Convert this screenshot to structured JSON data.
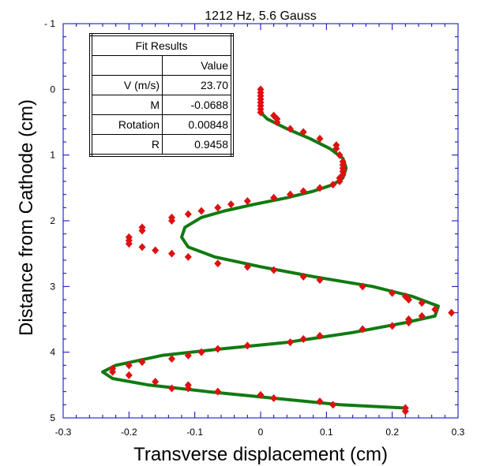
{
  "chart_data": {
    "type": "scatter",
    "title": "1212 Hz, 5.6 Gauss",
    "xlabel": "Transverse displacement (cm)",
    "ylabel": "Distance from Cathode (cm)",
    "xlim": [
      -0.3,
      0.3
    ],
    "ylim": [
      -1,
      5
    ],
    "y_inverted": true,
    "xticks": [
      "-0.3",
      "-0.2",
      "-0.1",
      "0",
      "0.1",
      "0.2",
      "0.3"
    ],
    "yticks": [
      "- 1",
      "0",
      "1",
      "2",
      "3",
      "4",
      "5"
    ],
    "grid": false,
    "colors": {
      "points": "#dd1111",
      "fit": "#117a11",
      "axes": "#0000cc"
    },
    "series": [
      {
        "role": "measured",
        "marker": "diamond",
        "points": [
          [
            0.0,
            0.0
          ],
          [
            0.0,
            0.05
          ],
          [
            0.0,
            0.1
          ],
          [
            0.0,
            0.15
          ],
          [
            0.0,
            0.2
          ],
          [
            0.0,
            0.25
          ],
          [
            0.0,
            0.3
          ],
          [
            0.0,
            0.35
          ],
          [
            0.02,
            0.4
          ],
          [
            0.025,
            0.45
          ],
          [
            0.025,
            0.5
          ],
          [
            0.045,
            0.6
          ],
          [
            0.065,
            0.65
          ],
          [
            0.09,
            0.75
          ],
          [
            0.115,
            0.85
          ],
          [
            0.115,
            0.9
          ],
          [
            0.12,
            1.0
          ],
          [
            0.125,
            1.1
          ],
          [
            0.125,
            1.15
          ],
          [
            0.125,
            1.2
          ],
          [
            0.125,
            1.25
          ],
          [
            0.125,
            1.3
          ],
          [
            0.12,
            1.35
          ],
          [
            0.12,
            1.4
          ],
          [
            0.11,
            1.45
          ],
          [
            0.09,
            1.5
          ],
          [
            0.065,
            1.55
          ],
          [
            0.045,
            1.6
          ],
          [
            0.02,
            1.65
          ],
          [
            -0.02,
            1.7
          ],
          [
            -0.045,
            1.75
          ],
          [
            -0.065,
            1.8
          ],
          [
            -0.09,
            1.85
          ],
          [
            -0.11,
            1.9
          ],
          [
            -0.135,
            1.95
          ],
          [
            -0.135,
            2.0
          ],
          [
            -0.18,
            2.1
          ],
          [
            -0.18,
            2.15
          ],
          [
            -0.2,
            2.25
          ],
          [
            -0.2,
            2.3
          ],
          [
            -0.2,
            2.35
          ],
          [
            -0.18,
            2.4
          ],
          [
            -0.16,
            2.45
          ],
          [
            -0.135,
            2.5
          ],
          [
            -0.11,
            2.55
          ],
          [
            -0.065,
            2.65
          ],
          [
            -0.02,
            2.7
          ],
          [
            0.02,
            2.75
          ],
          [
            0.065,
            2.85
          ],
          [
            0.09,
            2.9
          ],
          [
            0.155,
            3.0
          ],
          [
            0.2,
            3.1
          ],
          [
            0.22,
            3.15
          ],
          [
            0.225,
            3.2
          ],
          [
            0.245,
            3.25
          ],
          [
            0.265,
            3.35
          ],
          [
            0.29,
            3.4
          ],
          [
            0.245,
            3.45
          ],
          [
            0.225,
            3.5
          ],
          [
            0.225,
            3.55
          ],
          [
            0.2,
            3.6
          ],
          [
            0.155,
            3.65
          ],
          [
            0.09,
            3.75
          ],
          [
            0.065,
            3.8
          ],
          [
            0.045,
            3.85
          ],
          [
            -0.02,
            3.9
          ],
          [
            -0.065,
            3.95
          ],
          [
            -0.09,
            4.0
          ],
          [
            -0.11,
            4.05
          ],
          [
            -0.135,
            4.1
          ],
          [
            -0.18,
            4.15
          ],
          [
            -0.2,
            4.2
          ],
          [
            -0.225,
            4.25
          ],
          [
            -0.225,
            4.3
          ],
          [
            -0.2,
            4.35
          ],
          [
            -0.16,
            4.45
          ],
          [
            -0.11,
            4.5
          ],
          [
            -0.135,
            4.55
          ],
          [
            -0.11,
            4.55
          ],
          [
            -0.065,
            4.6
          ],
          [
            0.0,
            4.65
          ],
          [
            0.02,
            4.7
          ],
          [
            0.09,
            4.75
          ],
          [
            0.11,
            4.8
          ],
          [
            0.22,
            4.85
          ],
          [
            0.22,
            4.9
          ]
        ]
      },
      {
        "role": "fit",
        "line": true,
        "points": [
          [
            0.0,
            0.35
          ],
          [
            0.01,
            0.45
          ],
          [
            0.04,
            0.6
          ],
          [
            0.075,
            0.75
          ],
          [
            0.105,
            0.9
          ],
          [
            0.125,
            1.05
          ],
          [
            0.13,
            1.2
          ],
          [
            0.125,
            1.35
          ],
          [
            0.11,
            1.45
          ],
          [
            0.08,
            1.55
          ],
          [
            0.04,
            1.65
          ],
          [
            -0.01,
            1.75
          ],
          [
            -0.055,
            1.85
          ],
          [
            -0.09,
            1.95
          ],
          [
            -0.115,
            2.1
          ],
          [
            -0.12,
            2.25
          ],
          [
            -0.11,
            2.4
          ],
          [
            -0.07,
            2.55
          ],
          [
            0.0,
            2.7
          ],
          [
            0.08,
            2.85
          ],
          [
            0.17,
            3.0
          ],
          [
            0.23,
            3.15
          ],
          [
            0.27,
            3.3
          ],
          [
            0.265,
            3.45
          ],
          [
            0.22,
            3.55
          ],
          [
            0.14,
            3.7
          ],
          [
            0.04,
            3.85
          ],
          [
            -0.06,
            3.95
          ],
          [
            -0.15,
            4.05
          ],
          [
            -0.22,
            4.2
          ],
          [
            -0.24,
            4.3
          ],
          [
            -0.225,
            4.4
          ],
          [
            -0.17,
            4.5
          ],
          [
            -0.08,
            4.6
          ],
          [
            0.02,
            4.7
          ],
          [
            0.12,
            4.8
          ],
          [
            0.22,
            4.85
          ]
        ]
      }
    ]
  },
  "fit_results": {
    "title": "Fit Results",
    "value_header": "Value",
    "rows": [
      {
        "label": "V (m/s)",
        "value": "23.70"
      },
      {
        "label": "M",
        "value": "-0.0688"
      },
      {
        "label": "Rotation",
        "value": "0.00848"
      },
      {
        "label": "R",
        "value": "0.9458"
      }
    ]
  }
}
